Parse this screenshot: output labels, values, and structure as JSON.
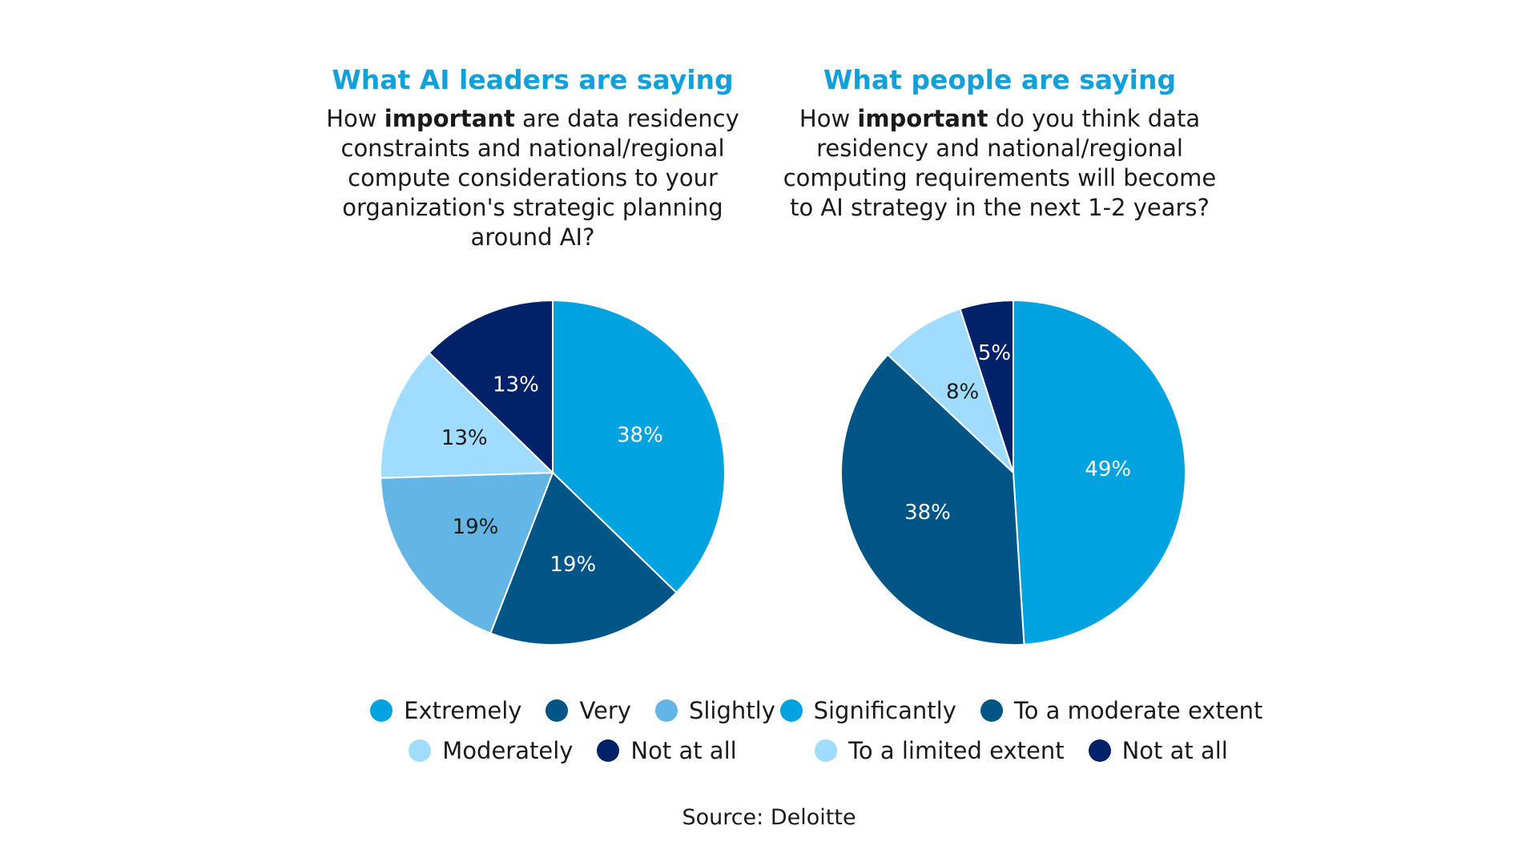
{
  "colors": {
    "accent": "#12a0da",
    "extremely": "#00a3e0",
    "very": "#005587",
    "slightly": "#62b5e5",
    "moderately": "#a0dcff",
    "not_at_all": "#012169"
  },
  "left": {
    "title": "What AI leaders are saying",
    "question_prefix": "How ",
    "question_bold": "important",
    "question_suffix": " are data residency constraints and national/regional compute considerations to your organization's strategic planning around AI?"
  },
  "right": {
    "title": "What people are saying",
    "question_prefix": "How ",
    "question_bold": "important",
    "question_suffix": " do you think data residency and national/regional computing requirements will become to AI strategy in the next 1-2 years?"
  },
  "chart_data": [
    {
      "type": "pie",
      "title": "What AI leaders are saying",
      "categories": [
        "Extremely",
        "Very",
        "Slightly",
        "Moderately",
        "Not at all"
      ],
      "values": [
        38,
        19,
        19,
        13,
        13
      ],
      "labels": [
        "38%",
        "19%",
        "19%",
        "13%",
        "13%"
      ],
      "colors": [
        "#00a3e0",
        "#005587",
        "#62b5e5",
        "#a0dcff",
        "#012169"
      ],
      "label_colors": [
        "#ffffff",
        "#ffffff",
        "#1a1a1a",
        "#1a1a1a",
        "#ffffff"
      ],
      "legend": [
        [
          "Extremely",
          "Very",
          "Slightly"
        ],
        [
          "Moderately",
          "Not at all"
        ]
      ]
    },
    {
      "type": "pie",
      "title": "What people are saying",
      "categories": [
        "Significantly",
        "To a moderate extent",
        "To a limited extent",
        "Not at all"
      ],
      "values": [
        49,
        38,
        8,
        5
      ],
      "labels": [
        "49%",
        "38%",
        "8%",
        "5%"
      ],
      "colors": [
        "#00a3e0",
        "#005587",
        "#a0dcff",
        "#012169"
      ],
      "label_colors": [
        "#ffffff",
        "#ffffff",
        "#1a1a1a",
        "#ffffff"
      ],
      "legend": [
        [
          "Significantly",
          "To a moderate extent"
        ],
        [
          "To a limited extent",
          "Not at all"
        ]
      ]
    }
  ],
  "source": "Source: Deloitte"
}
